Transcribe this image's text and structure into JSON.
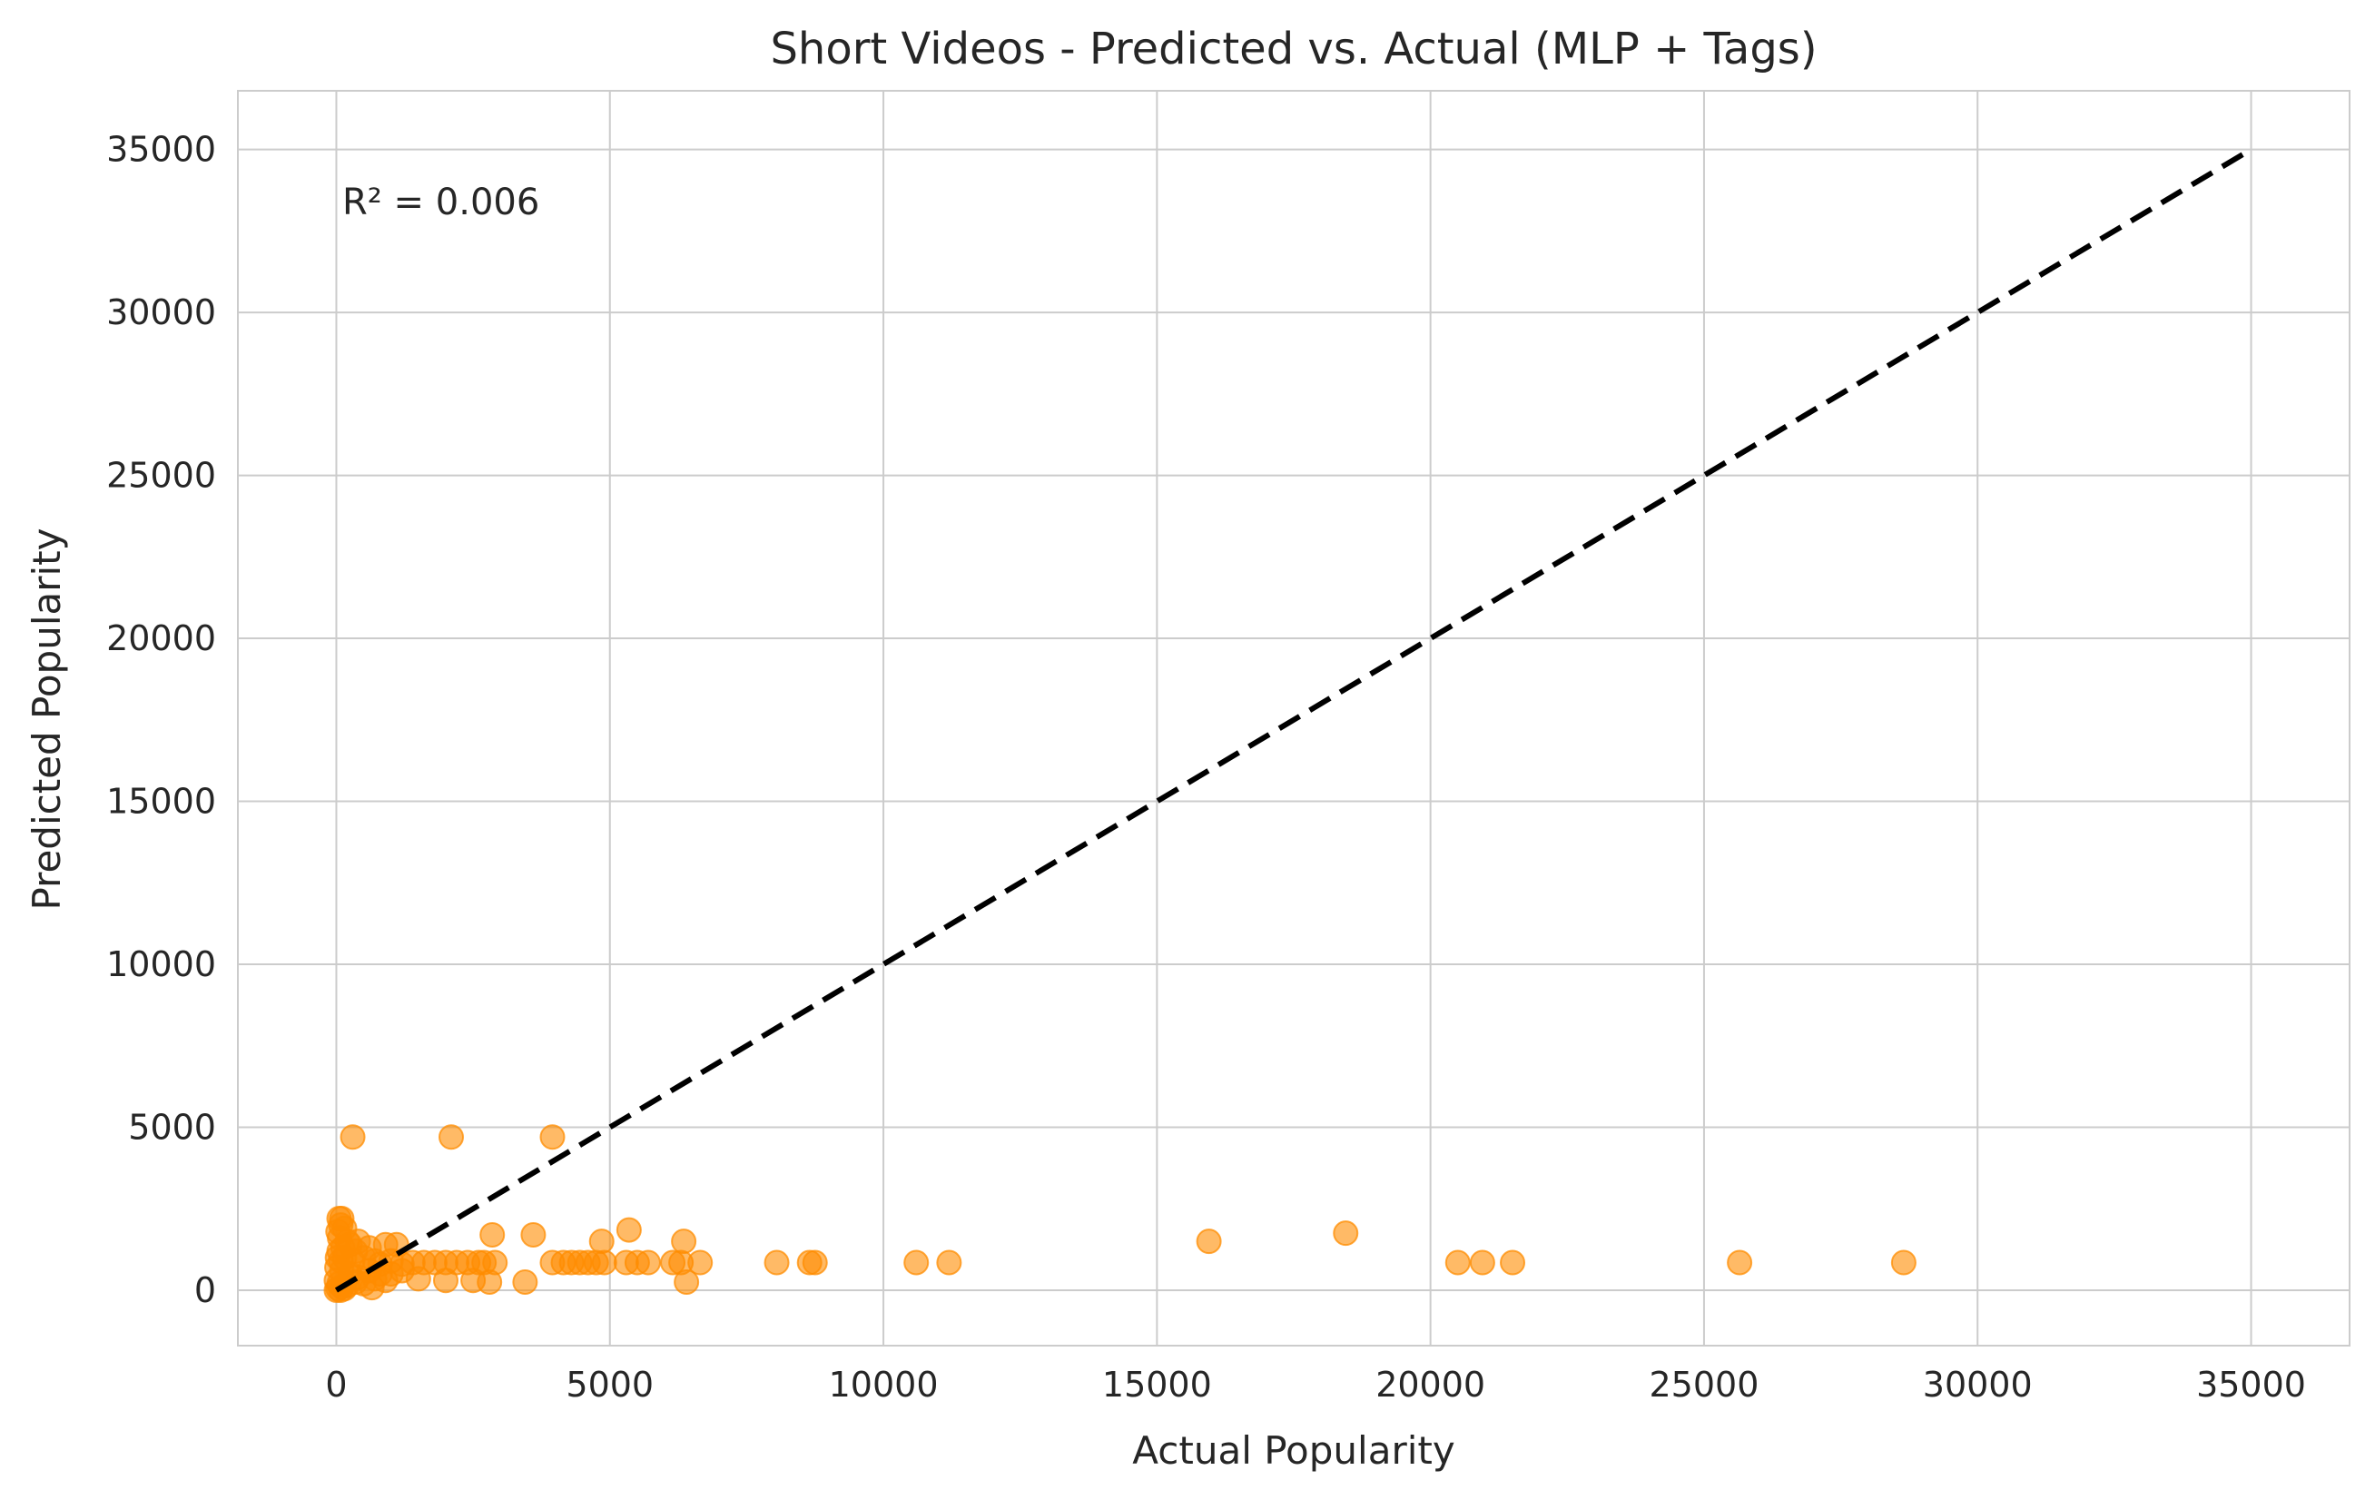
{
  "chart_data": {
    "type": "scatter",
    "title": "Short Videos - Predicted vs. Actual (MLP + Tags)",
    "xlabel": "Actual Popularity",
    "ylabel": "Predicted Popularity",
    "annotation": "R² = 0.006",
    "xlim": [
      -1800,
      36800
    ],
    "ylim": [
      -1700,
      36800
    ],
    "xticks": [
      0,
      5000,
      10000,
      15000,
      20000,
      25000,
      30000,
      35000
    ],
    "yticks": [
      0,
      5000,
      10000,
      15000,
      20000,
      25000,
      30000,
      35000
    ],
    "xtick_labels": [
      "0",
      "5000",
      "10000",
      "15000",
      "20000",
      "25000",
      "30000",
      "35000"
    ],
    "ytick_labels": [
      "0",
      "5000",
      "10000",
      "15000",
      "20000",
      "25000",
      "30000",
      "35000"
    ],
    "grid": true,
    "reference_line": {
      "style": "dashed",
      "color": "#000000",
      "x": [
        0,
        35000
      ],
      "y": [
        0,
        35000
      ]
    },
    "series": [
      {
        "color": "#ff8c00",
        "points": [
          [
            300,
            4700
          ],
          [
            2100,
            4700
          ],
          [
            3950,
            4700
          ],
          [
            50,
            2200
          ],
          [
            100,
            2200
          ],
          [
            80,
            2000
          ],
          [
            30,
            1800
          ],
          [
            150,
            1900
          ],
          [
            60,
            1600
          ],
          [
            200,
            1500
          ],
          [
            400,
            1500
          ],
          [
            250,
            1400
          ],
          [
            120,
            1300
          ],
          [
            50,
            1200
          ],
          [
            350,
            1200
          ],
          [
            600,
            1300
          ],
          [
            900,
            1400
          ],
          [
            1100,
            1400
          ],
          [
            20,
            1000
          ],
          [
            80,
            900
          ],
          [
            150,
            1000
          ],
          [
            300,
            900
          ],
          [
            500,
            1000
          ],
          [
            700,
            900
          ],
          [
            800,
            800
          ],
          [
            1000,
            900
          ],
          [
            1200,
            800
          ],
          [
            1400,
            850
          ],
          [
            1600,
            850
          ],
          [
            1800,
            850
          ],
          [
            2000,
            850
          ],
          [
            2200,
            850
          ],
          [
            2400,
            850
          ],
          [
            2600,
            850
          ],
          [
            2700,
            850
          ],
          [
            2900,
            850
          ],
          [
            10,
            700
          ],
          [
            100,
            600
          ],
          [
            250,
            500
          ],
          [
            400,
            400
          ],
          [
            600,
            600
          ],
          [
            800,
            500
          ],
          [
            1000,
            500
          ],
          [
            1200,
            600
          ],
          [
            0,
            300
          ],
          [
            50,
            200
          ],
          [
            100,
            100
          ],
          [
            200,
            150
          ],
          [
            350,
            250
          ],
          [
            500,
            200
          ],
          [
            650,
            80
          ],
          [
            700,
            350
          ],
          [
            900,
            300
          ],
          [
            1500,
            350
          ],
          [
            2000,
            300
          ],
          [
            2500,
            300
          ],
          [
            2800,
            250
          ],
          [
            3450,
            250
          ],
          [
            0,
            0
          ],
          [
            30,
            50
          ],
          [
            80,
            0
          ],
          [
            150,
            50
          ],
          [
            2850,
            1700
          ],
          [
            3600,
            1700
          ],
          [
            4850,
            1500
          ],
          [
            5350,
            1850
          ],
          [
            6350,
            1500
          ],
          [
            6400,
            250
          ],
          [
            3950,
            850
          ],
          [
            4150,
            850
          ],
          [
            4300,
            850
          ],
          [
            4450,
            850
          ],
          [
            4600,
            850
          ],
          [
            4750,
            850
          ],
          [
            4900,
            850
          ],
          [
            5300,
            850
          ],
          [
            5500,
            850
          ],
          [
            5700,
            850
          ],
          [
            6150,
            850
          ],
          [
            6300,
            850
          ],
          [
            6650,
            850
          ],
          [
            8050,
            850
          ],
          [
            8650,
            850
          ],
          [
            8750,
            850
          ],
          [
            10600,
            850
          ],
          [
            11200,
            850
          ],
          [
            15950,
            1500
          ],
          [
            18450,
            1750
          ],
          [
            20500,
            850
          ],
          [
            20950,
            850
          ],
          [
            21500,
            850
          ],
          [
            25650,
            850
          ],
          [
            28650,
            850
          ]
        ]
      }
    ]
  }
}
